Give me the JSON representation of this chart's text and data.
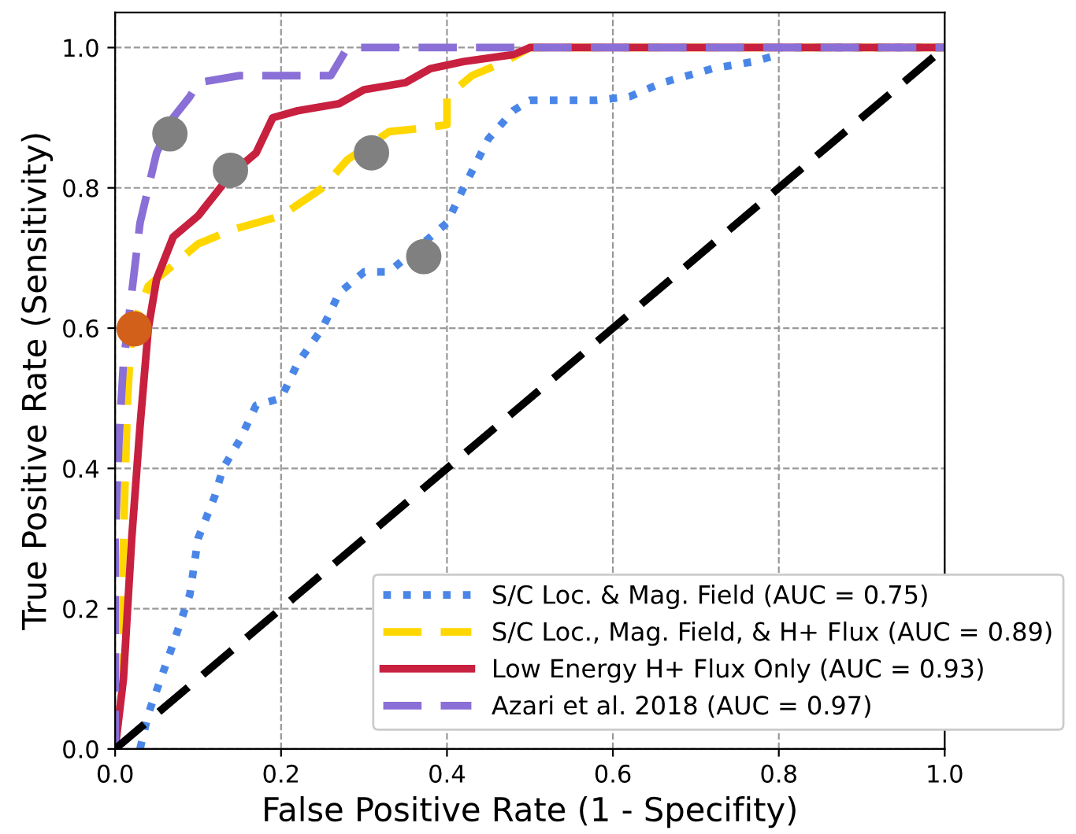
{
  "chart_data": {
    "type": "line",
    "xlabel": "False Positive Rate (1 - Specifity)",
    "ylabel": "True Positive Rate (Sensitivity)",
    "xlim": [
      0,
      1
    ],
    "ylim": [
      0,
      1.05
    ],
    "xticks": [
      {
        "value": 0,
        "label": "0.0"
      },
      {
        "value": 0.2,
        "label": "0.2"
      },
      {
        "value": 0.4,
        "label": "0.4"
      },
      {
        "value": 0.6,
        "label": "0.6"
      },
      {
        "value": 0.8,
        "label": "0.8"
      },
      {
        "value": 1,
        "label": "1.0"
      }
    ],
    "yticks": [
      {
        "value": 0,
        "label": "0.0"
      },
      {
        "value": 0.2,
        "label": "0.2"
      },
      {
        "value": 0.4,
        "label": "0.4"
      },
      {
        "value": 0.6,
        "label": "0.6"
      },
      {
        "value": 0.8,
        "label": "0.8"
      },
      {
        "value": 1,
        "label": "1.0"
      }
    ],
    "grid": true,
    "legend": "bottom right",
    "series": [
      {
        "name": "S/C Loc. & Mag. Field (AUC = 0.75)",
        "color": "#4a86e8",
        "line_style": "dotted",
        "x": [
          0.03,
          0.04,
          0.07,
          0.09,
          0.1,
          0.12,
          0.13,
          0.15,
          0.17,
          0.2,
          0.22,
          0.25,
          0.27,
          0.3,
          0.33,
          0.4,
          0.42,
          0.45,
          0.48,
          0.5,
          0.58,
          0.62,
          0.66,
          0.72,
          0.77,
          0.8,
          0.8,
          1
        ],
        "values": [
          0,
          0.05,
          0.15,
          0.22,
          0.3,
          0.36,
          0.4,
          0.44,
          0.49,
          0.5,
          0.55,
          0.6,
          0.65,
          0.68,
          0.68,
          0.75,
          0.8,
          0.87,
          0.91,
          0.925,
          0.925,
          0.93,
          0.95,
          0.97,
          0.98,
          0.99,
          1,
          1
        ]
      },
      {
        "name": "S/C Loc., Mag. Field, & H+ Flux (AUC = 0.89)",
        "color": "#ffd700",
        "line_style": "dashed",
        "x": [
          0,
          0.005,
          0.01,
          0.015,
          0.02,
          0.04,
          0.06,
          0.1,
          0.14,
          0.2,
          0.25,
          0.28,
          0.33,
          0.37,
          0.4,
          0.4,
          0.43,
          0.47,
          0.5,
          1
        ],
        "values": [
          0,
          0.1,
          0.3,
          0.5,
          0.6,
          0.66,
          0.68,
          0.72,
          0.74,
          0.76,
          0.8,
          0.84,
          0.88,
          0.885,
          0.89,
          0.93,
          0.96,
          0.98,
          1,
          1
        ]
      },
      {
        "name": "Low Energy H+ Flux Only (AUC = 0.93)",
        "color": "#c8203f",
        "line_style": "solid",
        "x": [
          0,
          0.01,
          0.02,
          0.03,
          0.04,
          0.05,
          0.07,
          0.1,
          0.12,
          0.14,
          0.17,
          0.19,
          0.22,
          0.27,
          0.3,
          0.35,
          0.38,
          0.42,
          0.48,
          0.5,
          1
        ],
        "values": [
          0,
          0.1,
          0.3,
          0.46,
          0.6,
          0.67,
          0.73,
          0.76,
          0.79,
          0.82,
          0.85,
          0.9,
          0.91,
          0.92,
          0.94,
          0.95,
          0.97,
          0.98,
          0.99,
          1,
          1
        ]
      },
      {
        "name": "Azari et al. 2018 (AUC = 0.97)",
        "color": "#8a6fd6",
        "line_style": "dashed",
        "x": [
          0,
          0,
          0.005,
          0.01,
          0.02,
          0.03,
          0.04,
          0.05,
          0.07,
          0.09,
          0.1,
          0.15,
          0.26,
          0.28,
          1
        ],
        "values": [
          0,
          0.3,
          0.45,
          0.55,
          0.65,
          0.75,
          0.8,
          0.85,
          0.9,
          0.93,
          0.95,
          0.96,
          0.96,
          1,
          1
        ]
      },
      {
        "color": "#000000",
        "line_style": "dashed",
        "x": [
          0,
          1
        ],
        "values": [
          0,
          1
        ]
      },
      {
        "type": "scatter",
        "marker": "circle",
        "color": "#808080",
        "x": [
          0.066,
          0.139,
          0.309,
          0.372
        ],
        "values": [
          0.877,
          0.825,
          0.85,
          0.702
        ]
      },
      {
        "type": "scatter",
        "marker": "circle",
        "color": "#d2601a",
        "x": [
          0.023
        ],
        "values": [
          0.599
        ]
      }
    ]
  }
}
